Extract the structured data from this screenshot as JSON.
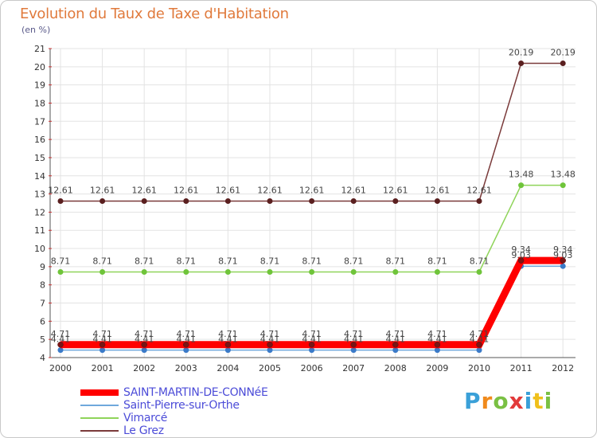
{
  "title": "Evolution du Taux de Taxe d'Habitation",
  "unit_label": "(en %)",
  "brand": {
    "text": "Proxiti",
    "letters": [
      "P",
      "r",
      "o",
      "x",
      "i",
      "t",
      "i"
    ]
  },
  "chart_data": {
    "type": "line",
    "title": "Evolution du Taux de Taxe d'Habitation",
    "ylabel": "(en %)",
    "xlabel": "",
    "x": [
      "2000",
      "2001",
      "2002",
      "2003",
      "2004",
      "2005",
      "2006",
      "2007",
      "2008",
      "2009",
      "2010",
      "2011",
      "2012"
    ],
    "ylim": [
      4,
      21
    ],
    "yticks": [
      "4",
      "5",
      "6",
      "7",
      "8",
      "9",
      "10",
      "11",
      "12",
      "13",
      "14",
      "15",
      "16",
      "17",
      "18",
      "19",
      "20",
      "21"
    ],
    "legend_position": "bottom-left",
    "series": [
      {
        "name": "SAINT-MARTIN-DE-CONNéE",
        "color": "#ff0000",
        "values": [
          4.71,
          4.71,
          4.71,
          4.71,
          4.71,
          4.71,
          4.71,
          4.71,
          4.71,
          4.71,
          4.71,
          9.34,
          9.34
        ],
        "labels": [
          "4.71",
          "4.71",
          "4.71",
          "4.71",
          "4.71",
          "4.71",
          "4.71",
          "4.71",
          "4.71",
          "4.71",
          "4.71",
          "9.34",
          "9.34"
        ]
      },
      {
        "name": "Saint-Pierre-sur-Orthe",
        "color": "#6fa8dc",
        "values": [
          4.41,
          4.41,
          4.41,
          4.41,
          4.41,
          4.41,
          4.41,
          4.41,
          4.41,
          4.41,
          4.41,
          9.03,
          9.03
        ],
        "labels": [
          "4.41",
          "4.41",
          "4.41",
          "4.41",
          "4.41",
          "4.41",
          "4.41",
          "4.41",
          "4.41",
          "4.41",
          "4.41",
          "9.03",
          "9.03"
        ]
      },
      {
        "name": "Vimarcé",
        "color": "#8fd45a",
        "values": [
          8.71,
          8.71,
          8.71,
          8.71,
          8.71,
          8.71,
          8.71,
          8.71,
          8.71,
          8.71,
          8.71,
          13.48,
          13.48
        ],
        "labels": [
          "8.71",
          "8.71",
          "8.71",
          "8.71",
          "8.71",
          "8.71",
          "8.71",
          "8.71",
          "8.71",
          "8.71",
          "8.71",
          "13.48",
          "13.48"
        ]
      },
      {
        "name": "Le Grez",
        "color": "#7a3a3a",
        "values": [
          12.61,
          12.61,
          12.61,
          12.61,
          12.61,
          12.61,
          12.61,
          12.61,
          12.61,
          12.61,
          12.61,
          20.19,
          20.19
        ],
        "labels": [
          "12.61",
          "12.61",
          "12.61",
          "12.61",
          "12.61",
          "12.61",
          "12.61",
          "12.61",
          "12.61",
          "12.61",
          "12.61",
          "20.19",
          "20.19"
        ]
      }
    ]
  }
}
